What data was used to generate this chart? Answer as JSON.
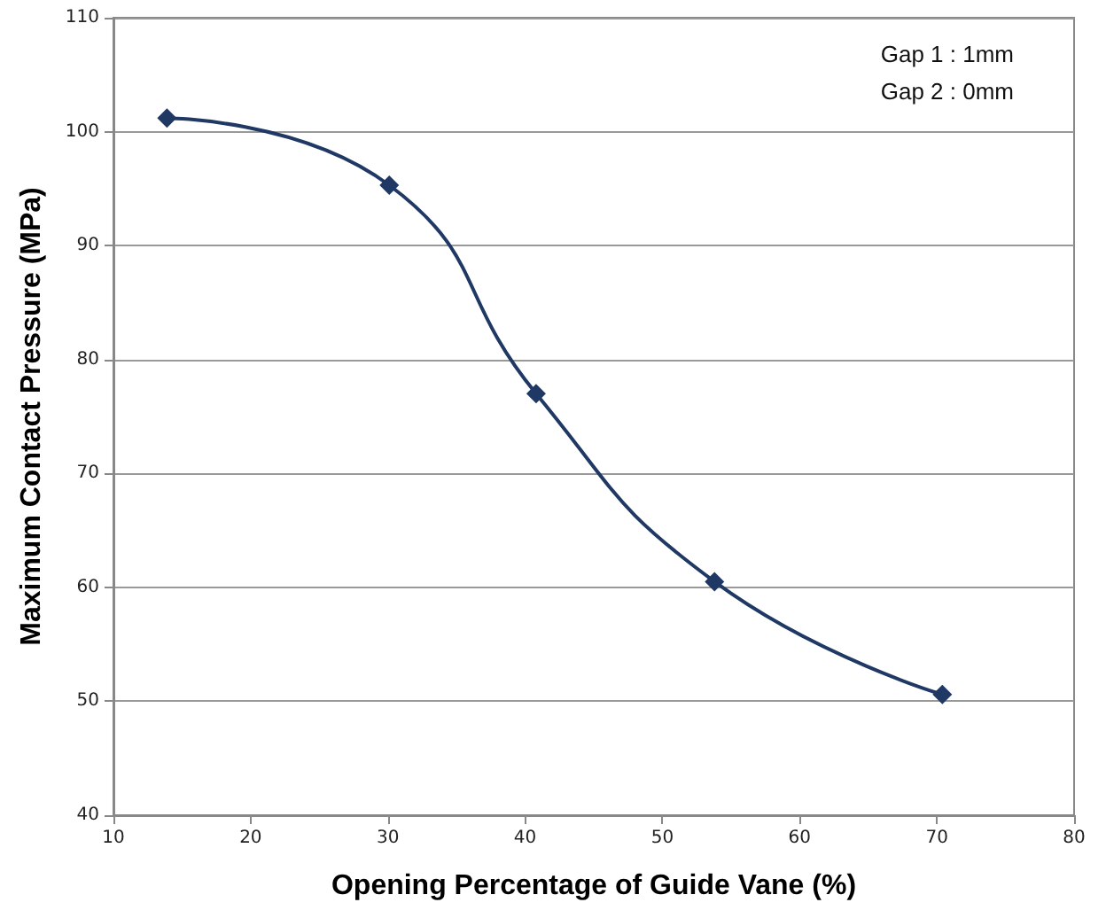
{
  "chart_data": {
    "type": "line",
    "xlabel": "Opening Percentage of Guide Vane (%)",
    "ylabel": "Maximum Contact Pressure (MPa)",
    "annotations": [
      "Gap 1 : 1mm",
      "Gap 2 : 0mm"
    ],
    "x": [
      13.9,
      30.1,
      40.8,
      53.8,
      70.4
    ],
    "series": [
      {
        "color": "#1f3864",
        "values": [
          101.2,
          95.3,
          77.0,
          60.5,
          50.6
        ]
      }
    ],
    "xlim": [
      10,
      80
    ],
    "xticks": [
      10,
      20,
      30,
      40,
      50,
      60,
      70,
      80
    ],
    "ylim": [
      40,
      110
    ],
    "yticks": [
      40,
      50,
      60,
      70,
      80,
      90,
      100,
      110
    ],
    "grid": "y",
    "marker": "diamond",
    "line_style": "solid"
  }
}
